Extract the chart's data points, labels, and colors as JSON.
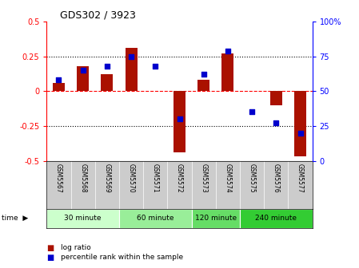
{
  "title": "GDS302 / 3923",
  "samples": [
    "GSM5567",
    "GSM5568",
    "GSM5569",
    "GSM5570",
    "GSM5571",
    "GSM5572",
    "GSM5573",
    "GSM5574",
    "GSM5575",
    "GSM5576",
    "GSM5577"
  ],
  "log_ratio": [
    0.06,
    0.18,
    0.12,
    0.31,
    0.0,
    -0.44,
    0.08,
    0.27,
    0.0,
    -0.1,
    -0.47
  ],
  "percentile": [
    58,
    65,
    68,
    75,
    68,
    30,
    62,
    79,
    35,
    27,
    20
  ],
  "groups": [
    {
      "label": "30 minute",
      "start": 0,
      "end": 2,
      "color": "#ccffcc"
    },
    {
      "label": "60 minute",
      "start": 3,
      "end": 5,
      "color": "#99ee99"
    },
    {
      "label": "120 minute",
      "start": 6,
      "end": 7,
      "color": "#66dd66"
    },
    {
      "label": "240 minute",
      "start": 8,
      "end": 10,
      "color": "#33cc33"
    }
  ],
  "group_colors": [
    "#ccffcc",
    "#99ee99",
    "#66dd66",
    "#33cc33"
  ],
  "bar_color": "#aa1100",
  "dot_color": "#0000cc",
  "ylim_left": [
    -0.5,
    0.5
  ],
  "ylim_right": [
    0,
    100
  ],
  "yticks_left": [
    -0.5,
    -0.25,
    0,
    0.25,
    0.5
  ],
  "yticks_right": [
    0,
    25,
    50,
    75,
    100
  ],
  "background_color": "#ffffff",
  "group_header_bg": "#cccccc",
  "bar_width": 0.5
}
